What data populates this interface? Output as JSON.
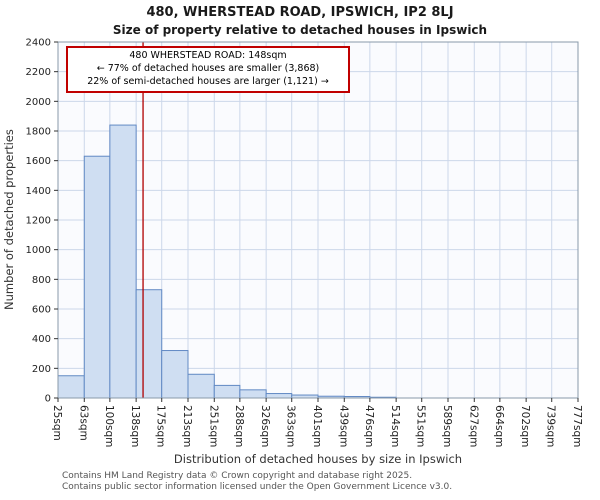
{
  "title": "480, WHERSTEAD ROAD, IPSWICH, IP2 8LJ",
  "subtitle": "Size of property relative to detached houses in Ipswich",
  "annotation": {
    "line1": "480 WHERSTEAD ROAD: 148sqm",
    "line2": "← 77% of detached houses are smaller (3,868)",
    "line3": "22% of semi-detached houses are larger (1,121) →"
  },
  "chart_data": {
    "type": "bar",
    "title": "480, WHERSTEAD ROAD, IPSWICH, IP2 8LJ — Size of property relative to detached houses in Ipswich",
    "xlabel": "Distribution of detached houses by size in Ipswich",
    "ylabel": "Number of detached properties",
    "bin_edges": [
      25,
      63,
      100,
      138,
      175,
      213,
      251,
      288,
      326,
      363,
      401,
      439,
      476,
      514,
      551,
      589,
      627,
      664,
      702,
      739,
      777
    ],
    "tick_labels": [
      "25sqm",
      "63sqm",
      "100sqm",
      "138sqm",
      "175sqm",
      "213sqm",
      "251sqm",
      "288sqm",
      "326sqm",
      "363sqm",
      "401sqm",
      "439sqm",
      "476sqm",
      "514sqm",
      "551sqm",
      "589sqm",
      "627sqm",
      "664sqm",
      "702sqm",
      "739sqm",
      "777sqm"
    ],
    "values": [
      150,
      1630,
      1840,
      730,
      320,
      160,
      85,
      55,
      30,
      20,
      12,
      10,
      5,
      0,
      0,
      0,
      0,
      0,
      0,
      0
    ],
    "ylim": [
      0,
      2400
    ],
    "ytick_step": 200,
    "grid": true,
    "marker_value": 148,
    "colors": {
      "bar_fill": "#cfdef2",
      "bar_edge": "#6189c4",
      "marker": "#b00000",
      "grid": "#ccd7ea",
      "spine": "#8899aa",
      "annotation_border": "#c00000"
    }
  },
  "footer": {
    "line1": "Contains HM Land Registry data © Crown copyright and database right 2025.",
    "line2": "Contains public sector information licensed under the Open Government Licence v3.0."
  }
}
